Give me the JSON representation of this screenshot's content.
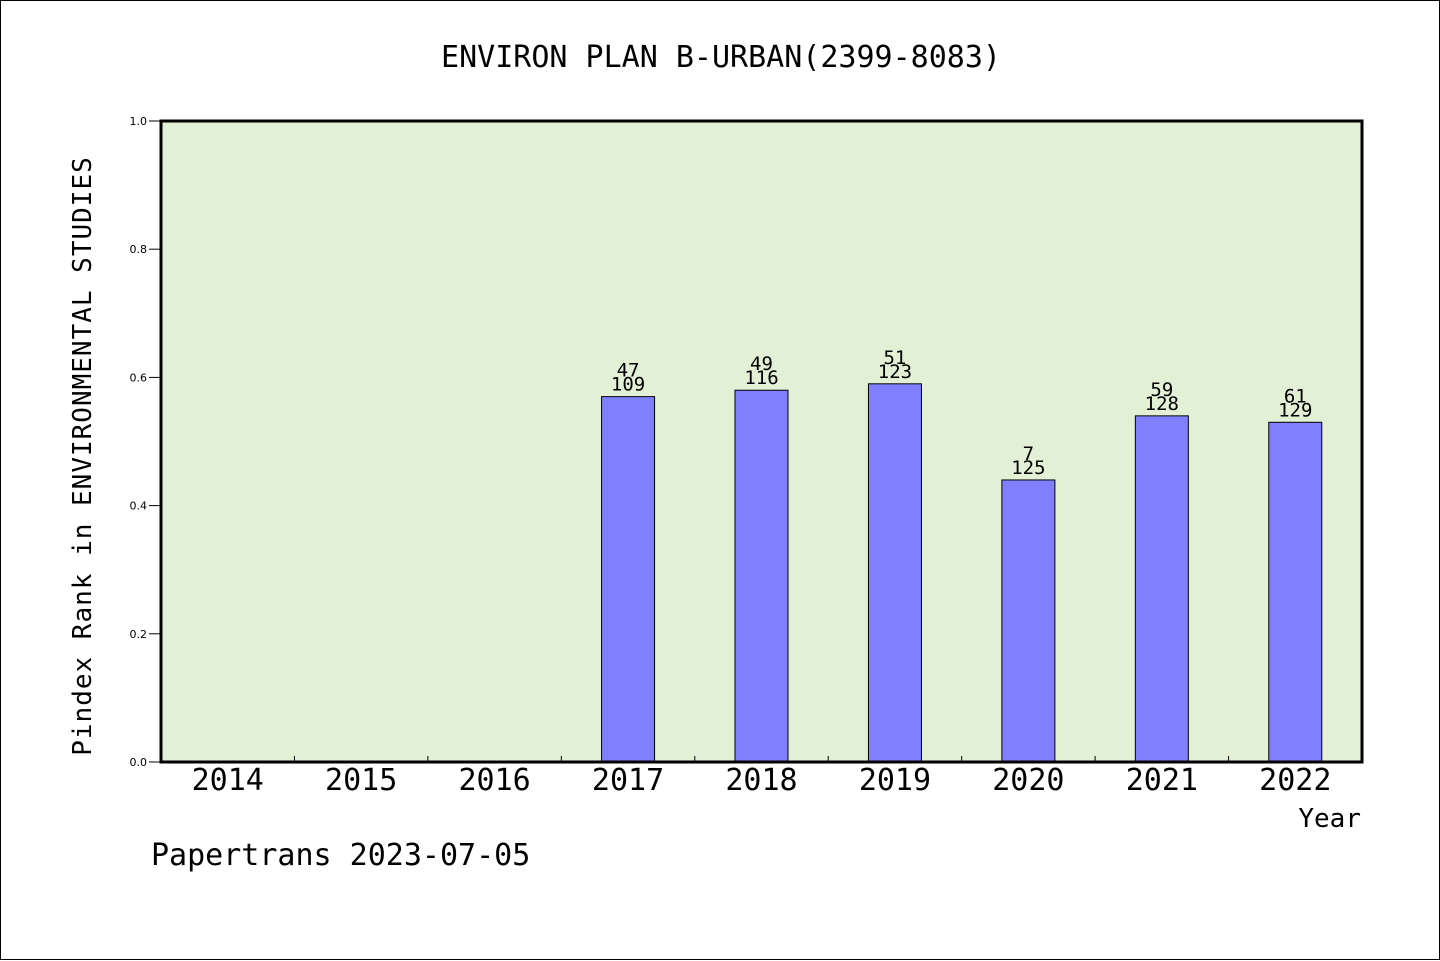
{
  "chart_data": {
    "type": "bar",
    "title": "ENVIRON PLAN B-URBAN(2399-8083)",
    "xlabel": "Year",
    "ylabel": "Pindex Rank in ENVIRONMENTAL STUDIES",
    "ylim": [
      0,
      1.0
    ],
    "yticks": [
      "0.0",
      "0.2",
      "0.4",
      "0.6",
      "0.8",
      "1.0"
    ],
    "categories": [
      "2014",
      "2015",
      "2016",
      "2017",
      "2018",
      "2019",
      "2020",
      "2021",
      "2022"
    ],
    "values": [
      null,
      null,
      null,
      0.57,
      0.58,
      0.59,
      0.44,
      0.54,
      0.53
    ],
    "labels_top": [
      "",
      "",
      "",
      "47",
      "49",
      "51",
      "7",
      "59",
      "61"
    ],
    "labels_bottom": [
      "",
      "",
      "",
      "109",
      "116",
      "123",
      "125",
      "128",
      "129"
    ],
    "grid": false,
    "colors": {
      "plot_background": "#e2f0d6",
      "bar_fill": "#8080ff",
      "bar_stroke": "#000000"
    }
  },
  "footer": {
    "text": "Papertrans 2023-07-05"
  }
}
